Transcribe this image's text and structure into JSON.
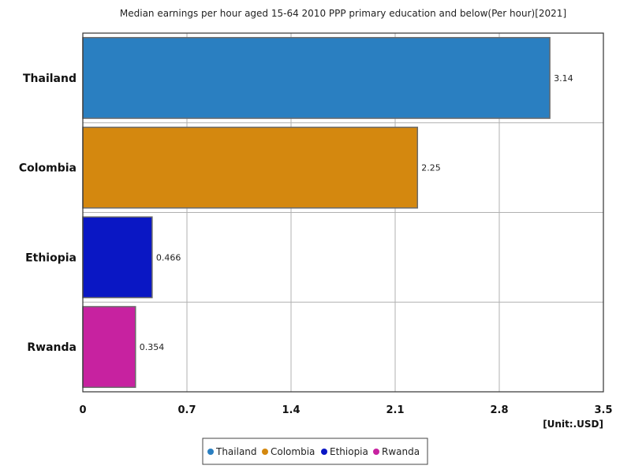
{
  "chart_data": {
    "type": "bar",
    "orientation": "horizontal",
    "title": "Median earnings per hour aged 15-64 2010 PPP primary education and below(Per hour)[2021]",
    "categories": [
      "Thailand",
      "Colombia",
      "Ethiopia",
      "Rwanda"
    ],
    "values": [
      3.14,
      2.25,
      0.466,
      0.354
    ],
    "value_labels": [
      "3.14",
      "2.25",
      "0.466",
      "0.354"
    ],
    "colors": [
      "#2a7fc1",
      "#d4880f",
      "#0a17c4",
      "#c722a0"
    ],
    "xlim": [
      0,
      3.5
    ],
    "x_ticks": [
      0,
      0.7,
      1.4,
      2.1,
      2.8,
      3.5
    ],
    "x_tick_labels": [
      "0",
      "0.7",
      "1.4",
      "2.1",
      "2.8",
      "3.5"
    ],
    "unit_label": "[Unit:.USD]",
    "grid": true,
    "legend_position": "bottom-center",
    "legend": [
      "Thailand",
      "Colombia",
      "Ethiopia",
      "Rwanda"
    ]
  }
}
